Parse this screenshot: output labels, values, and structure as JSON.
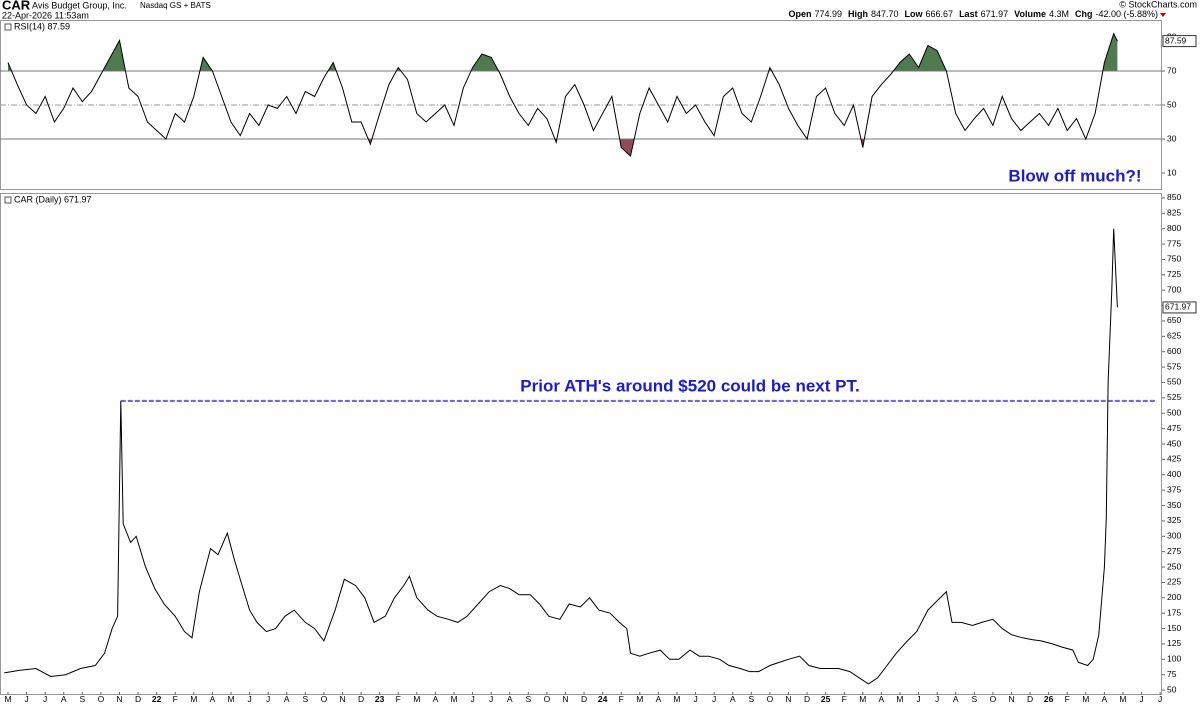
{
  "header": {
    "ticker": "CAR",
    "name": "Avis Budget Group, Inc.",
    "exchange": "Nasdaq GS + BATS",
    "datetime": "22-Apr-2026 11:53am",
    "quote": [
      {
        "label": "Open",
        "value": "774.99"
      },
      {
        "label": "High",
        "value": "847.70"
      },
      {
        "label": "Low",
        "value": "666.67"
      },
      {
        "label": "Last",
        "value": "671.97"
      },
      {
        "label": "Volume",
        "value": "4.3M"
      },
      {
        "label": "Chg",
        "value": "-42.00 (-5.88%)"
      }
    ],
    "source": "© StockCharts.com"
  },
  "chart_data": [
    {
      "type": "line",
      "legend": "RSI(14) 87.59",
      "last_value": 87.59,
      "xlim": [
        -0.43,
        62.1
      ],
      "ylim": [
        0,
        100
      ],
      "yticks": [
        10,
        30,
        50,
        70,
        90
      ],
      "overbought": 70,
      "oversold": 30,
      "midline": 50,
      "overbought_color": "#4f7a4f",
      "oversold_color": "#8e4b5c",
      "x": [
        0,
        0.5,
        1,
        1.5,
        2,
        2.5,
        3,
        3.5,
        4,
        4.5,
        5,
        5.5,
        6,
        6.5,
        7,
        7.5,
        8,
        8.5,
        9,
        9.5,
        10,
        10.5,
        11,
        11.5,
        12,
        12.5,
        13,
        13.5,
        14,
        14.5,
        15,
        15.5,
        16,
        16.5,
        17,
        17.5,
        18,
        18.5,
        19,
        19.5,
        20,
        20.5,
        21,
        21.5,
        22,
        22.5,
        23,
        23.5,
        24,
        24.5,
        25,
        25.5,
        26,
        26.5,
        27,
        27.5,
        28,
        28.5,
        29,
        29.5,
        30,
        30.5,
        31,
        31.5,
        32,
        32.5,
        33,
        33.5,
        34,
        34.5,
        35,
        35.5,
        36,
        36.5,
        37,
        37.5,
        38,
        38.5,
        39,
        39.5,
        40,
        40.5,
        41,
        41.5,
        42,
        42.5,
        43,
        43.5,
        44,
        44.5,
        45,
        45.5,
        46,
        46.5,
        47,
        47.5,
        48,
        48.5,
        49,
        49.5,
        50,
        50.5,
        51,
        51.5,
        52,
        52.5,
        53,
        53.5,
        54,
        54.5,
        55,
        55.5,
        56,
        56.5,
        57,
        57.5,
        58,
        58.5,
        59,
        59.5,
        59.7
      ],
      "series": [
        {
          "name": "RSI(14)",
          "color": "#000000",
          "values": [
            75,
            62,
            50,
            45,
            55,
            40,
            48,
            60,
            52,
            58,
            68,
            78,
            88,
            60,
            55,
            40,
            35,
            30,
            45,
            40,
            55,
            78,
            70,
            55,
            40,
            32,
            45,
            38,
            50,
            48,
            55,
            45,
            58,
            55,
            66,
            75,
            60,
            40,
            40,
            27,
            45,
            62,
            72,
            65,
            45,
            40,
            45,
            50,
            38,
            60,
            72,
            80,
            78,
            68,
            55,
            45,
            38,
            48,
            42,
            28,
            55,
            62,
            50,
            35,
            45,
            55,
            25,
            20,
            45,
            60,
            50,
            40,
            55,
            45,
            50,
            40,
            32,
            55,
            60,
            45,
            40,
            55,
            72,
            62,
            48,
            38,
            30,
            55,
            60,
            45,
            38,
            50,
            25,
            55,
            62,
            68,
            75,
            80,
            72,
            85,
            82,
            70,
            45,
            35,
            42,
            48,
            38,
            55,
            42,
            35,
            40,
            45,
            38,
            48,
            35,
            42,
            30,
            45,
            75,
            92,
            87.59
          ]
        }
      ]
    },
    {
      "type": "line",
      "legend": "CAR (Daily) 671.97",
      "last_value": 671.97,
      "xlim": [
        -0.43,
        62.1
      ],
      "ylim": [
        42,
        858
      ],
      "yticks": [
        50,
        75,
        100,
        125,
        150,
        175,
        200,
        225,
        250,
        275,
        300,
        325,
        350,
        375,
        400,
        425,
        450,
        475,
        500,
        525,
        550,
        575,
        600,
        625,
        650,
        675,
        700,
        725,
        750,
        775,
        800,
        825,
        850
      ],
      "xticks": [
        {
          "value": 0,
          "label": "M"
        },
        {
          "value": 1,
          "label": "J"
        },
        {
          "value": 2,
          "label": "J"
        },
        {
          "value": 3,
          "label": "A"
        },
        {
          "value": 4,
          "label": "S"
        },
        {
          "value": 5,
          "label": "O"
        },
        {
          "value": 6,
          "label": "N"
        },
        {
          "value": 7,
          "label": "D"
        },
        {
          "value": 8,
          "label": "22"
        },
        {
          "value": 9,
          "label": "F"
        },
        {
          "value": 10,
          "label": "M"
        },
        {
          "value": 11,
          "label": "A"
        },
        {
          "value": 12,
          "label": "M"
        },
        {
          "value": 13,
          "label": "J"
        },
        {
          "value": 14,
          "label": "J"
        },
        {
          "value": 15,
          "label": "A"
        },
        {
          "value": 16,
          "label": "S"
        },
        {
          "value": 17,
          "label": "O"
        },
        {
          "value": 18,
          "label": "N"
        },
        {
          "value": 19,
          "label": "D"
        },
        {
          "value": 20,
          "label": "23"
        },
        {
          "value": 21,
          "label": "F"
        },
        {
          "value": 22,
          "label": "M"
        },
        {
          "value": 23,
          "label": "A"
        },
        {
          "value": 24,
          "label": "M"
        },
        {
          "value": 25,
          "label": "J"
        },
        {
          "value": 26,
          "label": "J"
        },
        {
          "value": 27,
          "label": "A"
        },
        {
          "value": 28,
          "label": "S"
        },
        {
          "value": 29,
          "label": "O"
        },
        {
          "value": 30,
          "label": "N"
        },
        {
          "value": 31,
          "label": "D"
        },
        {
          "value": 32,
          "label": "24"
        },
        {
          "value": 33,
          "label": "F"
        },
        {
          "value": 34,
          "label": "M"
        },
        {
          "value": 35,
          "label": "A"
        },
        {
          "value": 36,
          "label": "M"
        },
        {
          "value": 37,
          "label": "J"
        },
        {
          "value": 38,
          "label": "J"
        },
        {
          "value": 39,
          "label": "A"
        },
        {
          "value": 40,
          "label": "S"
        },
        {
          "value": 41,
          "label": "O"
        },
        {
          "value": 42,
          "label": "N"
        },
        {
          "value": 43,
          "label": "D"
        },
        {
          "value": 44,
          "label": "25"
        },
        {
          "value": 45,
          "label": "F"
        },
        {
          "value": 46,
          "label": "M"
        },
        {
          "value": 47,
          "label": "A"
        },
        {
          "value": 48,
          "label": "M"
        },
        {
          "value": 49,
          "label": "J"
        },
        {
          "value": 50,
          "label": "J"
        },
        {
          "value": 51,
          "label": "A"
        },
        {
          "value": 52,
          "label": "S"
        },
        {
          "value": 53,
          "label": "O"
        },
        {
          "value": 54,
          "label": "N"
        },
        {
          "value": 55,
          "label": "D"
        },
        {
          "value": 56,
          "label": "26"
        },
        {
          "value": 57,
          "label": "F"
        },
        {
          "value": 58,
          "label": "M"
        },
        {
          "value": 59,
          "label": "A"
        },
        {
          "value": 60,
          "label": "M"
        },
        {
          "value": 61,
          "label": "J"
        },
        {
          "value": 62,
          "label": "J"
        }
      ],
      "hline": {
        "value": 520,
        "x_start": 6.07,
        "color": "#6a6ae6"
      },
      "annotations": [
        "Prior ATH's around $520 could be next PT.",
        "Blow off much?!"
      ],
      "x": [
        -0.2,
        0.6,
        1.5,
        2.3,
        3.1,
        3.9,
        4.7,
        5.2,
        5.6,
        5.9,
        6.07,
        6.2,
        6.6,
        6.9,
        7.4,
        7.9,
        8.4,
        9.0,
        9.5,
        9.9,
        10.3,
        10.9,
        11.3,
        11.8,
        12.2,
        12.6,
        13.0,
        13.4,
        13.9,
        14.4,
        14.9,
        15.4,
        16.0,
        16.5,
        17.0,
        17.6,
        18.1,
        18.7,
        19.2,
        19.7,
        20.3,
        20.8,
        21.3,
        21.6,
        22.0,
        22.6,
        23.1,
        23.7,
        24.2,
        24.7,
        25.3,
        25.9,
        26.5,
        27.0,
        27.5,
        28.1,
        28.6,
        29.1,
        29.7,
        30.2,
        30.8,
        31.3,
        31.8,
        32.4,
        32.9,
        33.3,
        33.5,
        34.0,
        34.5,
        35.1,
        35.6,
        36.1,
        36.7,
        37.2,
        37.7,
        38.3,
        38.8,
        39.4,
        39.9,
        40.4,
        41.0,
        41.5,
        42.0,
        42.6,
        43.1,
        43.7,
        44.2,
        44.7,
        45.3,
        45.8,
        46.3,
        46.8,
        47.3,
        47.8,
        48.4,
        48.9,
        49.5,
        50.0,
        50.5,
        50.8,
        51.3,
        51.9,
        52.4,
        53.0,
        53.5,
        54.0,
        54.6,
        55.1,
        55.6,
        56.2,
        56.7,
        57.3,
        57.6,
        58.1,
        58.4,
        58.7,
        59.0,
        59.1,
        59.2,
        59.4,
        59.5,
        59.7
      ],
      "series": [
        {
          "name": "CAR (Daily)",
          "color": "#000000",
          "values": [
            78,
            82,
            85,
            72,
            75,
            85,
            90,
            110,
            150,
            170,
            520,
            320,
            290,
            300,
            250,
            215,
            190,
            170,
            145,
            135,
            210,
            280,
            270,
            305,
            260,
            220,
            180,
            160,
            145,
            150,
            170,
            180,
            160,
            150,
            130,
            180,
            230,
            220,
            200,
            160,
            170,
            200,
            220,
            235,
            200,
            180,
            170,
            165,
            160,
            170,
            190,
            210,
            220,
            215,
            205,
            205,
            190,
            170,
            165,
            190,
            185,
            200,
            180,
            175,
            160,
            150,
            110,
            105,
            110,
            115,
            100,
            100,
            115,
            105,
            105,
            100,
            90,
            85,
            80,
            80,
            90,
            95,
            100,
            105,
            90,
            85,
            85,
            85,
            80,
            70,
            60,
            70,
            90,
            110,
            130,
            145,
            180,
            195,
            210,
            160,
            160,
            155,
            160,
            165,
            150,
            140,
            135,
            132,
            130,
            125,
            120,
            115,
            95,
            90,
            100,
            140,
            250,
            330,
            550,
            700,
            800,
            671.97
          ]
        }
      ]
    }
  ]
}
